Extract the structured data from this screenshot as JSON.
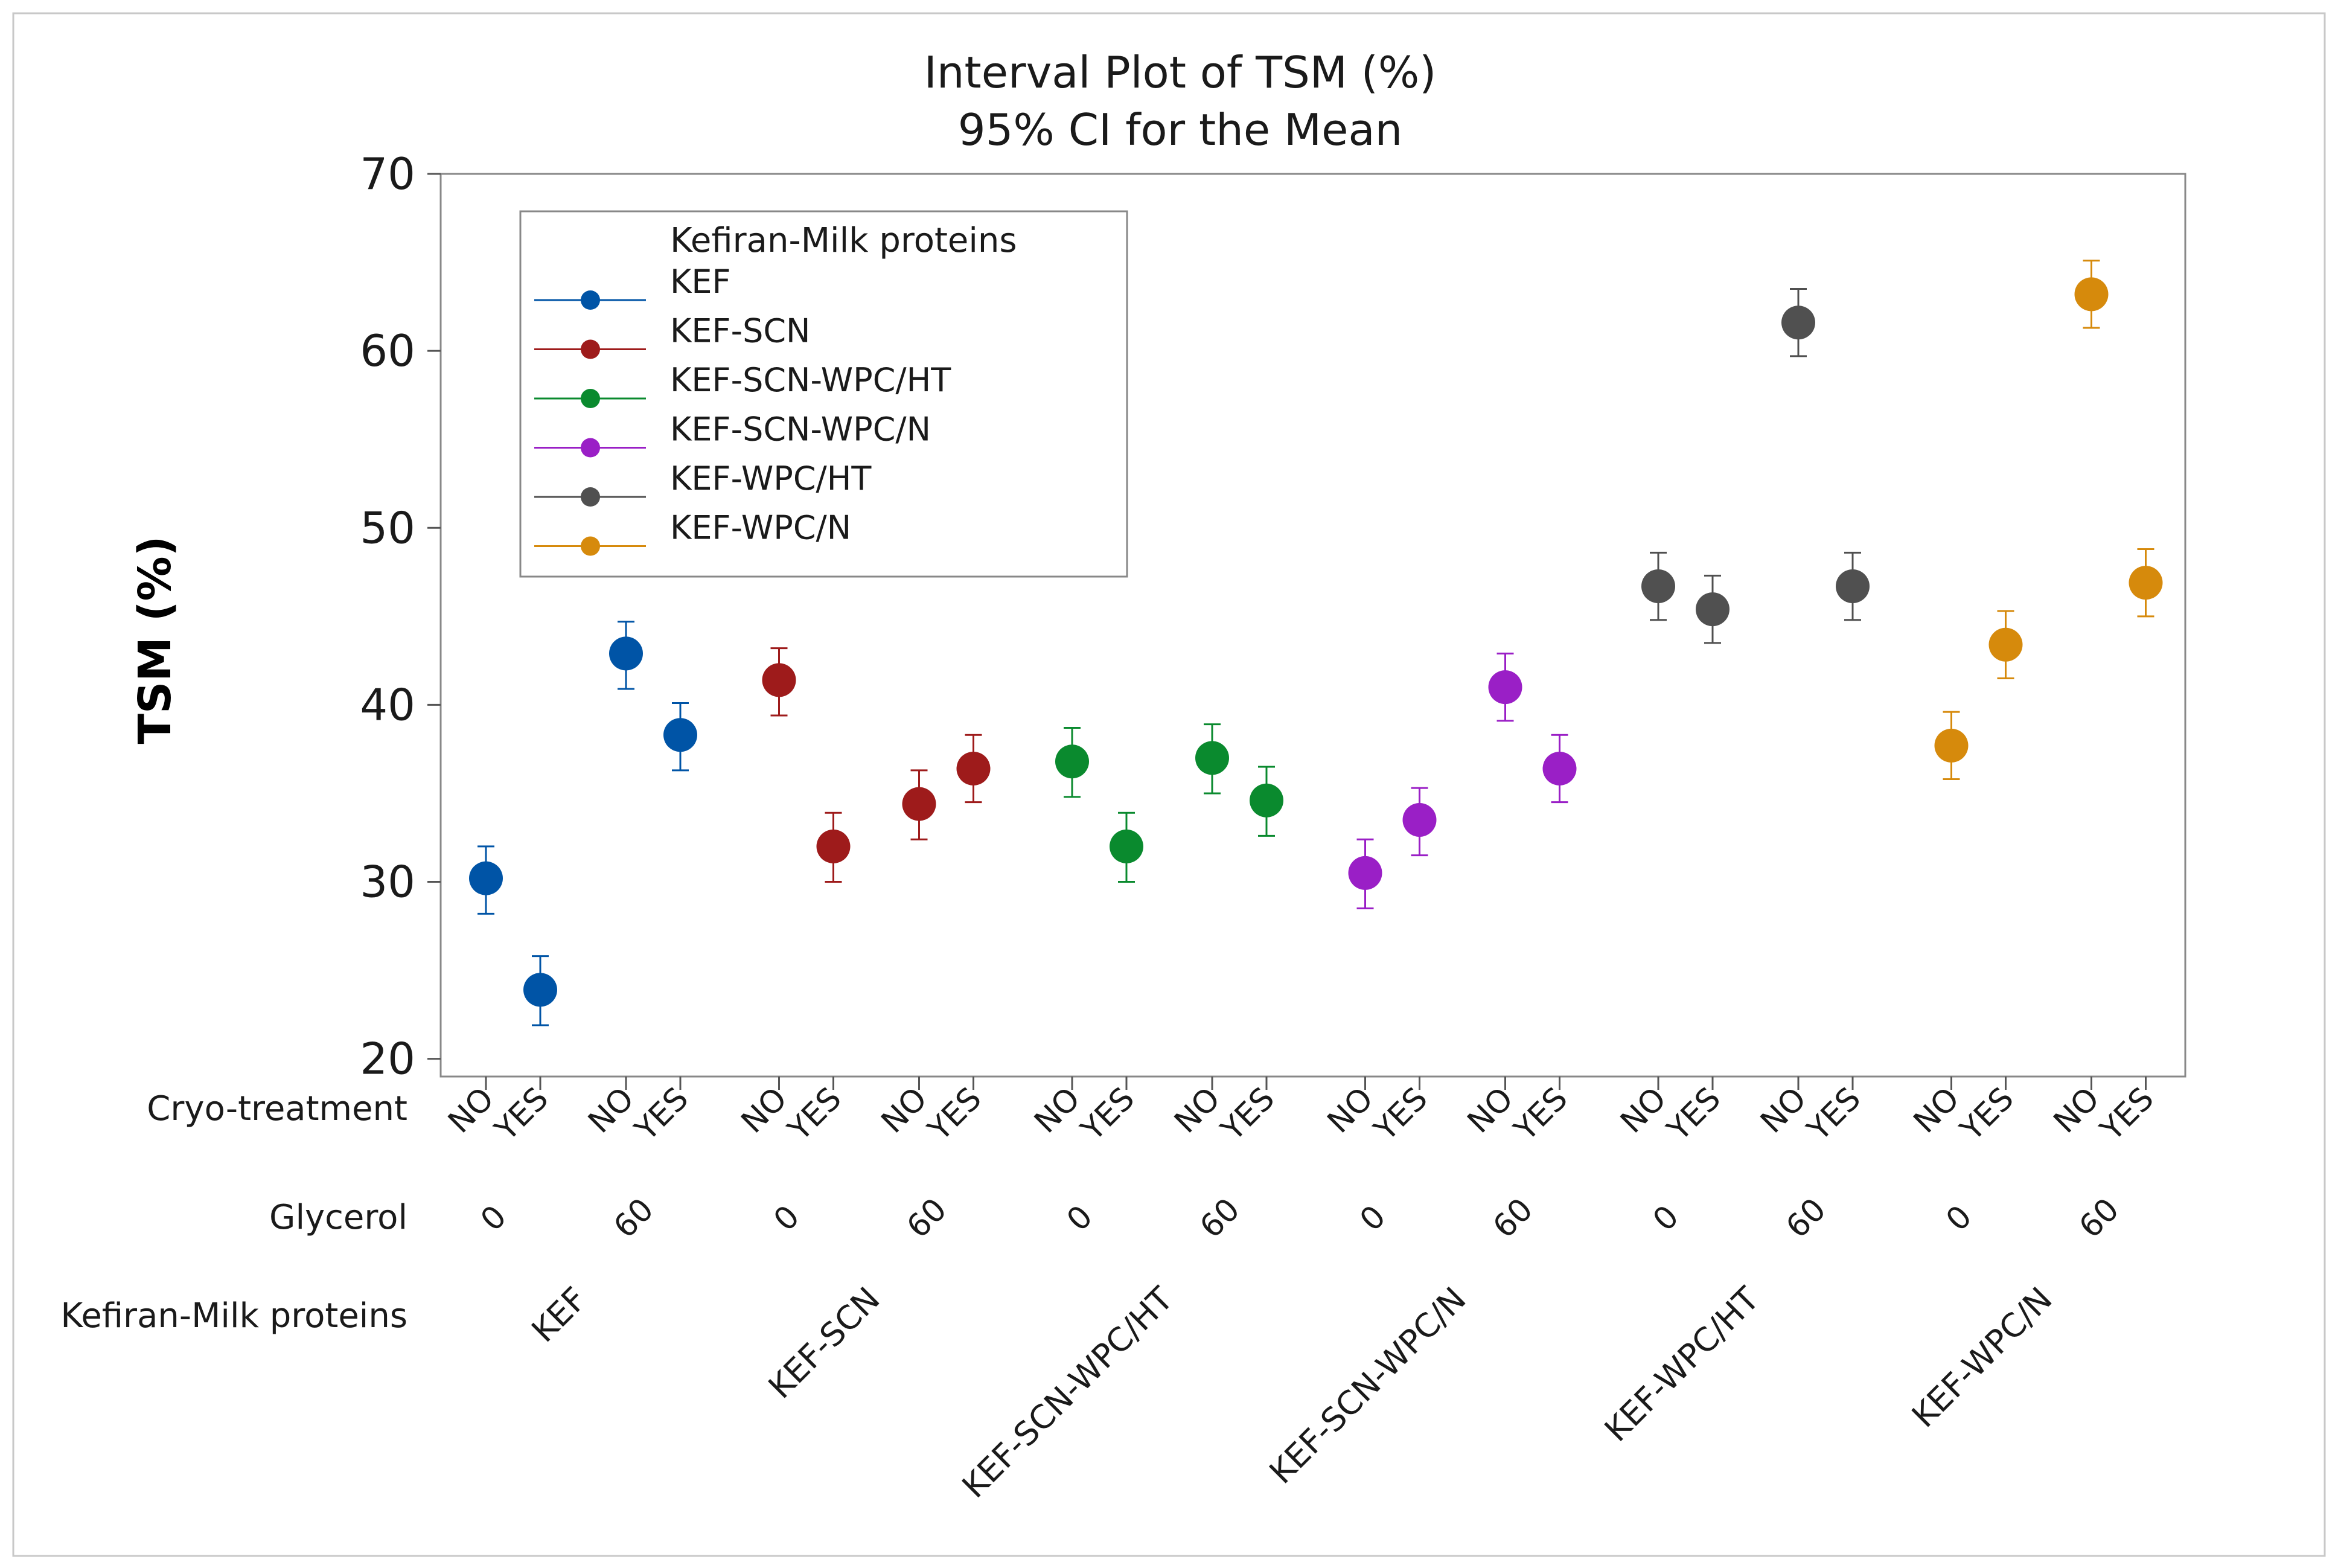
{
  "chart_data": {
    "type": "interval",
    "title": "Interval Plot of TSM (%)",
    "subtitle": "95% CI for the Mean",
    "ylabel": "TSM (%)",
    "ylim": [
      19,
      70
    ],
    "yticks": [
      20,
      30,
      40,
      50,
      60,
      70
    ],
    "legend": {
      "title": "Kefiran-Milk proteins",
      "placement": "top-left",
      "entries": [
        {
          "name": "KEF",
          "color": "#0054A6"
        },
        {
          "name": "KEF-SCN",
          "color": "#9E1B1B"
        },
        {
          "name": "KEF-SCN-WPC/HT",
          "color": "#0A8A2E"
        },
        {
          "name": "KEF-SCN-WPC/N",
          "color": "#9A1FC6"
        },
        {
          "name": "KEF-WPC/HT",
          "color": "#505050"
        },
        {
          "name": "KEF-WPC/N",
          "color": "#D68A0C"
        }
      ]
    },
    "x_factor_labels": [
      "Cryo-treatment",
      "Glycerol",
      "Kefiran-Milk proteins"
    ],
    "groups": [
      {
        "name": "KEF",
        "color": "#0054A6",
        "subgroups": [
          {
            "glycerol": "0",
            "points": [
              {
                "cryo": "NO",
                "mean": 30.2,
                "lower": 28.2,
                "upper": 32.0
              },
              {
                "cryo": "YES",
                "mean": 23.9,
                "lower": 21.9,
                "upper": 25.8
              }
            ]
          },
          {
            "glycerol": "60",
            "points": [
              {
                "cryo": "NO",
                "mean": 42.9,
                "lower": 40.9,
                "upper": 44.7
              },
              {
                "cryo": "YES",
                "mean": 38.3,
                "lower": 36.3,
                "upper": 40.1
              }
            ]
          }
        ]
      },
      {
        "name": "KEF-SCN",
        "color": "#9E1B1B",
        "subgroups": [
          {
            "glycerol": "0",
            "points": [
              {
                "cryo": "NO",
                "mean": 41.4,
                "lower": 39.4,
                "upper": 43.2
              },
              {
                "cryo": "YES",
                "mean": 32.0,
                "lower": 30.0,
                "upper": 33.9
              }
            ]
          },
          {
            "glycerol": "60",
            "points": [
              {
                "cryo": "NO",
                "mean": 34.4,
                "lower": 32.4,
                "upper": 36.3
              },
              {
                "cryo": "YES",
                "mean": 36.4,
                "lower": 34.5,
                "upper": 38.3
              }
            ]
          }
        ]
      },
      {
        "name": "KEF-SCN-WPC/HT",
        "color": "#0A8A2E",
        "subgroups": [
          {
            "glycerol": "0",
            "points": [
              {
                "cryo": "NO",
                "mean": 36.8,
                "lower": 34.8,
                "upper": 38.7
              },
              {
                "cryo": "YES",
                "mean": 32.0,
                "lower": 30.0,
                "upper": 33.9
              }
            ]
          },
          {
            "glycerol": "60",
            "points": [
              {
                "cryo": "NO",
                "mean": 37.0,
                "lower": 35.0,
                "upper": 38.9
              },
              {
                "cryo": "YES",
                "mean": 34.6,
                "lower": 32.6,
                "upper": 36.5
              }
            ]
          }
        ]
      },
      {
        "name": "KEF-SCN-WPC/N",
        "color": "#9A1FC6",
        "subgroups": [
          {
            "glycerol": "0",
            "points": [
              {
                "cryo": "NO",
                "mean": 30.5,
                "lower": 28.5,
                "upper": 32.4
              },
              {
                "cryo": "YES",
                "mean": 33.5,
                "lower": 31.5,
                "upper": 35.3
              }
            ]
          },
          {
            "glycerol": "60",
            "points": [
              {
                "cryo": "NO",
                "mean": 41.0,
                "lower": 39.1,
                "upper": 42.9
              },
              {
                "cryo": "YES",
                "mean": 36.4,
                "lower": 34.5,
                "upper": 38.3
              }
            ]
          }
        ]
      },
      {
        "name": "KEF-WPC/HT",
        "color": "#505050",
        "subgroups": [
          {
            "glycerol": "0",
            "points": [
              {
                "cryo": "NO",
                "mean": 46.7,
                "lower": 44.8,
                "upper": 48.6
              },
              {
                "cryo": "YES",
                "mean": 45.4,
                "lower": 43.5,
                "upper": 47.3
              }
            ]
          },
          {
            "glycerol": "60",
            "points": [
              {
                "cryo": "NO",
                "mean": 61.6,
                "lower": 59.7,
                "upper": 63.5
              },
              {
                "cryo": "YES",
                "mean": 46.7,
                "lower": 44.8,
                "upper": 48.6
              }
            ]
          }
        ]
      },
      {
        "name": "KEF-WPC/N",
        "color": "#D68A0C",
        "subgroups": [
          {
            "glycerol": "0",
            "points": [
              {
                "cryo": "NO",
                "mean": 37.7,
                "lower": 35.8,
                "upper": 39.6
              },
              {
                "cryo": "YES",
                "mean": 43.4,
                "lower": 41.5,
                "upper": 45.3
              }
            ]
          },
          {
            "glycerol": "60",
            "points": [
              {
                "cryo": "NO",
                "mean": 63.2,
                "lower": 61.3,
                "upper": 65.1
              },
              {
                "cryo": "YES",
                "mean": 46.9,
                "lower": 45.0,
                "upper": 48.8
              }
            ]
          }
        ]
      }
    ]
  }
}
